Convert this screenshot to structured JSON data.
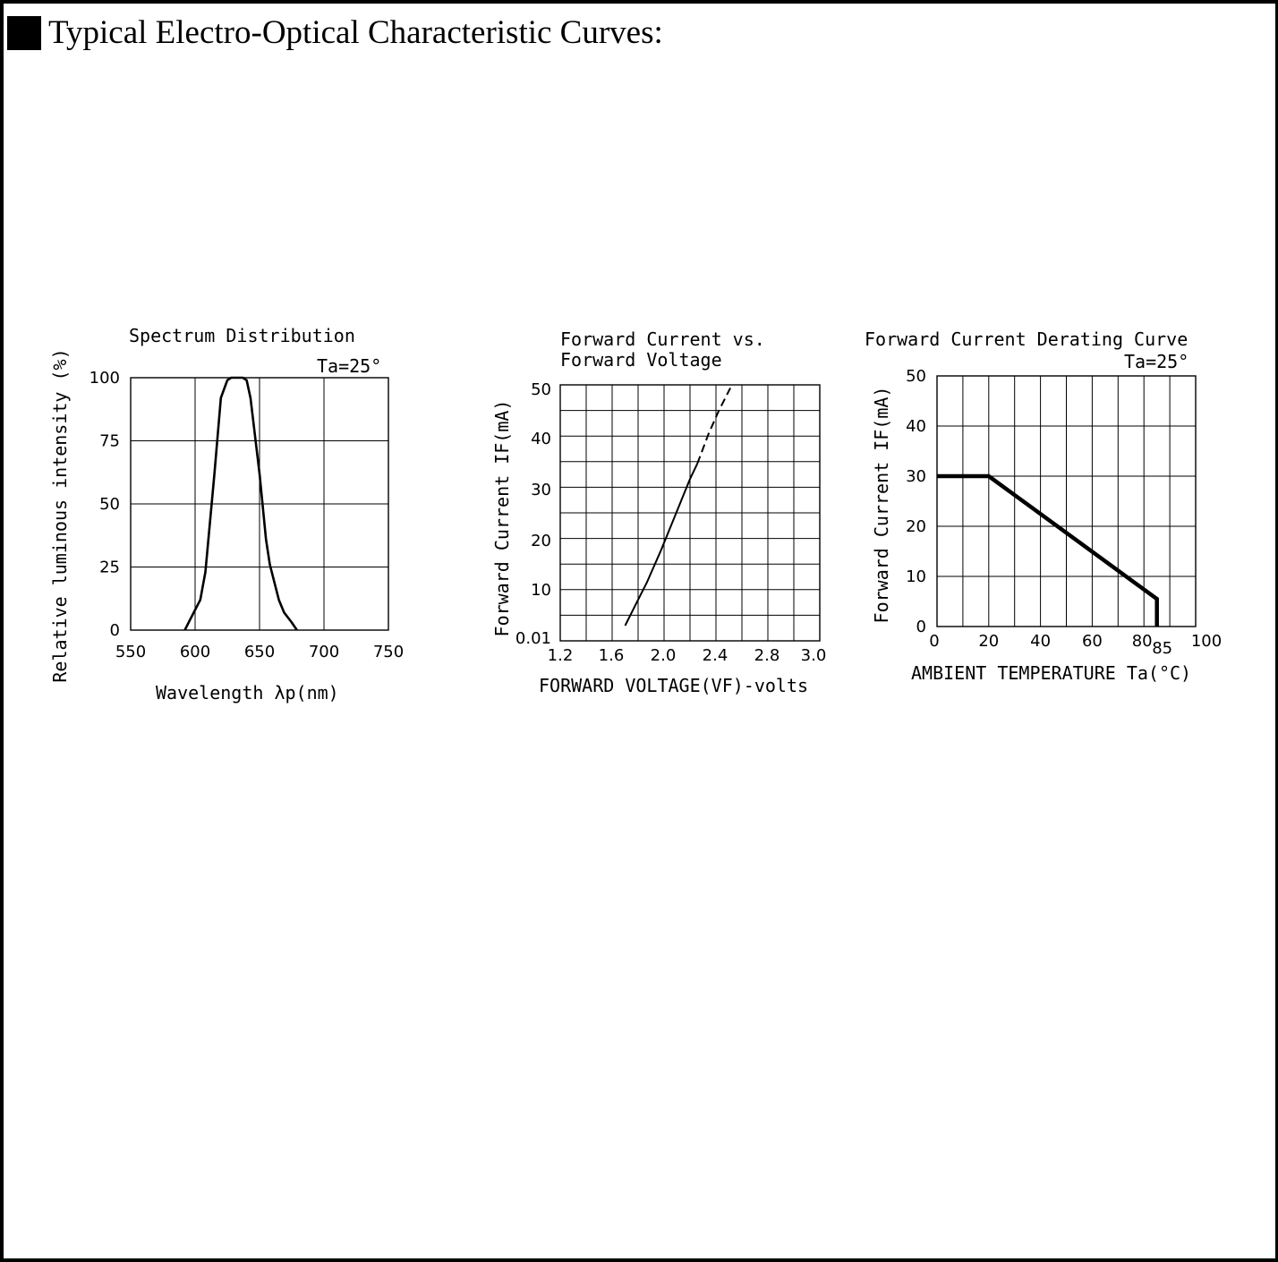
{
  "heading": {
    "text": "Typical Electro-Optical Characteristic Curves:"
  },
  "chart_data": [
    {
      "type": "line",
      "title": "Spectrum Distribution",
      "annotation": "Ta=25°",
      "xlabel": "Wavelength λp(nm)",
      "ylabel": "Relative luminous intensity (%)",
      "xlim": [
        550,
        750
      ],
      "ylim": [
        0,
        100
      ],
      "xticks": [
        "550",
        "600",
        "650",
        "700",
        "750"
      ],
      "yticks": [
        "0",
        "25",
        "50",
        "75",
        "100"
      ],
      "grid": true,
      "series": [
        {
          "x": [
            592,
            596,
            604,
            608,
            615,
            620,
            625,
            628,
            632,
            634,
            637,
            640,
            643,
            650,
            655,
            658,
            665,
            669,
            675,
            679
          ],
          "y": [
            0,
            4,
            12,
            23,
            62,
            92,
            99,
            100,
            100,
            100,
            100,
            99,
            92,
            62,
            36,
            26,
            12,
            7,
            3,
            0
          ]
        }
      ]
    },
    {
      "type": "line",
      "title": "Forward Current vs.\nForward Voltage",
      "xlabel": "FORWARD VOLTAGE(VF)-volts",
      "ylabel": "Forward Current IF(mA)",
      "xlim": [
        1.2,
        3.0
      ],
      "ylim": [
        0.01,
        50
      ],
      "xticks": [
        "1.2",
        "1.6",
        "2.0",
        "2.4",
        "2.8",
        "3.0"
      ],
      "yticks": [
        "0.01",
        "10",
        "20",
        "30",
        "40",
        "50"
      ],
      "grid": true,
      "series": [
        {
          "style": "solid",
          "x": [
            1.65,
            1.72,
            1.8,
            1.9,
            2.0,
            2.1,
            2.15
          ],
          "y": [
            3,
            7,
            11.5,
            18,
            25,
            32,
            35
          ]
        },
        {
          "style": "dashed",
          "x": [
            2.15,
            2.23,
            2.3,
            2.38
          ],
          "y": [
            35,
            41,
            45.5,
            50
          ]
        }
      ]
    },
    {
      "type": "line",
      "title": "Forward Current Derating Curve",
      "annotation": "Ta=25°",
      "xlabel": "AMBIENT TEMPERATURE Ta(°C)",
      "ylabel": "Forward Current IF(mA)",
      "xlim": [
        0,
        100
      ],
      "ylim": [
        0,
        50
      ],
      "xticks": [
        "0",
        "20",
        "40",
        "60",
        "80",
        "85",
        "100"
      ],
      "yticks": [
        "0",
        "10",
        "20",
        "30",
        "40",
        "50"
      ],
      "grid": true,
      "series": [
        {
          "x": [
            0,
            20,
            85,
            85
          ],
          "y": [
            30,
            30,
            5.5,
            0
          ]
        }
      ]
    }
  ]
}
